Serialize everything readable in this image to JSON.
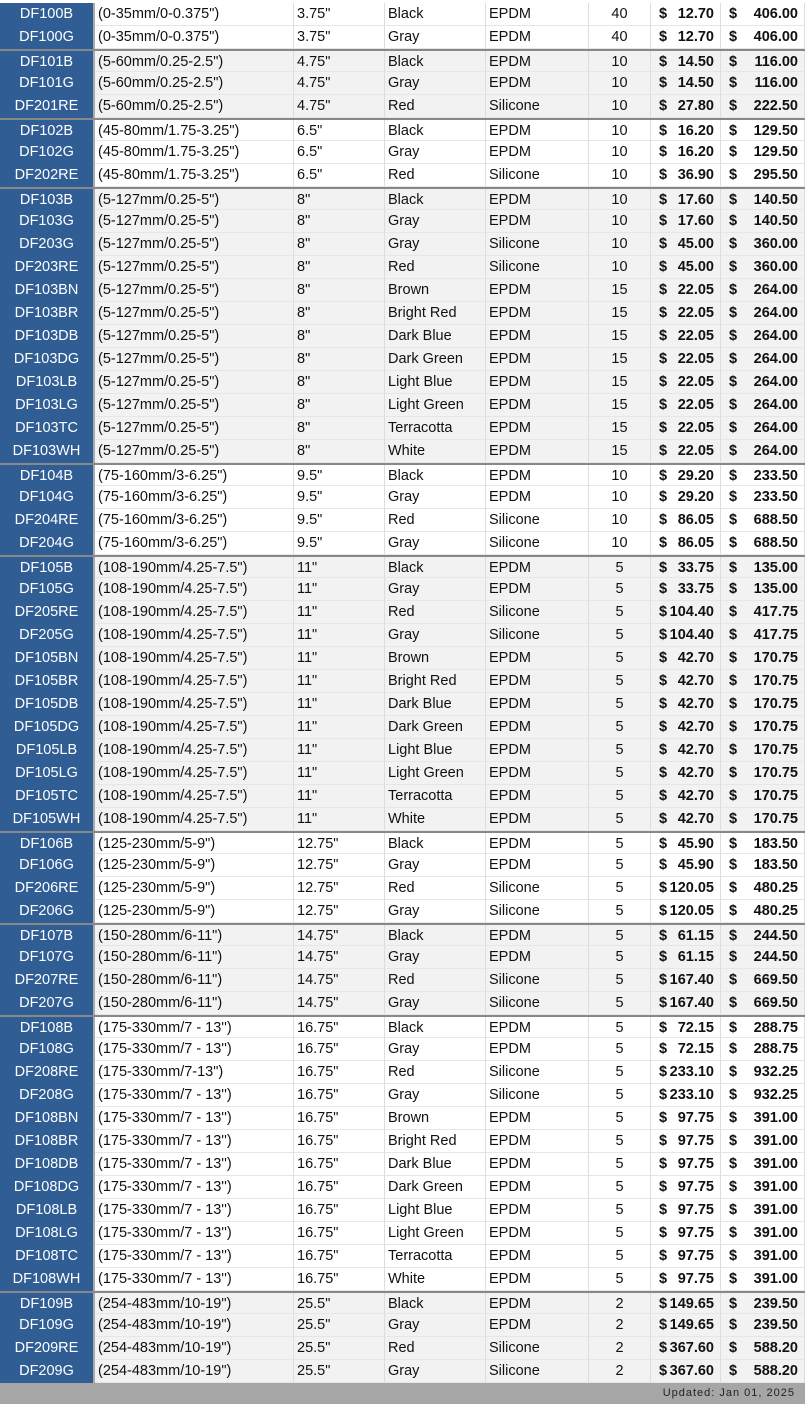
{
  "colors": {
    "id_background": "#2f5d94",
    "alt_row": "#f2f2f2",
    "footer": "#a6a6a6"
  },
  "groups": [
    {
      "rows": [
        [
          "DF100B",
          "(0-35mm/0-0.375\")",
          "3.75\"",
          "Black",
          "EPDM",
          "40",
          "12.70",
          "406.00"
        ],
        [
          "DF100G",
          "(0-35mm/0-0.375\")",
          "3.75\"",
          "Gray",
          "EPDM",
          "40",
          "12.70",
          "406.00"
        ]
      ]
    },
    {
      "rows": [
        [
          "DF101B",
          "(5-60mm/0.25-2.5\")",
          "4.75\"",
          "Black",
          "EPDM",
          "10",
          "14.50",
          "116.00"
        ],
        [
          "DF101G",
          "(5-60mm/0.25-2.5\")",
          "4.75\"",
          "Gray",
          "EPDM",
          "10",
          "14.50",
          "116.00"
        ],
        [
          "DF201RE",
          "(5-60mm/0.25-2.5\")",
          "4.75\"",
          "Red",
          "Silicone",
          "10",
          "27.80",
          "222.50"
        ]
      ]
    },
    {
      "rows": [
        [
          "DF102B",
          "(45-80mm/1.75-3.25\")",
          "6.5\"",
          "Black",
          "EPDM",
          "10",
          "16.20",
          "129.50"
        ],
        [
          "DF102G",
          "(45-80mm/1.75-3.25\")",
          "6.5\"",
          "Gray",
          "EPDM",
          "10",
          "16.20",
          "129.50"
        ],
        [
          "DF202RE",
          "(45-80mm/1.75-3.25\")",
          "6.5\"",
          "Red",
          "Silicone",
          "10",
          "36.90",
          "295.50"
        ]
      ]
    },
    {
      "rows": [
        [
          "DF103B",
          "(5-127mm/0.25-5\")",
          "8\"",
          "Black",
          "EPDM",
          "10",
          "17.60",
          "140.50"
        ],
        [
          "DF103G",
          "(5-127mm/0.25-5\")",
          "8\"",
          "Gray",
          "EPDM",
          "10",
          "17.60",
          "140.50"
        ],
        [
          "DF203G",
          "(5-127mm/0.25-5\")",
          "8\"",
          "Gray",
          "Silicone",
          "10",
          "45.00",
          "360.00"
        ],
        [
          "DF203RE",
          "(5-127mm/0.25-5\")",
          "8\"",
          "Red",
          "Silicone",
          "10",
          "45.00",
          "360.00"
        ],
        [
          "DF103BN",
          "(5-127mm/0.25-5\")",
          "8\"",
          "Brown",
          "EPDM",
          "15",
          "22.05",
          "264.00"
        ],
        [
          "DF103BR",
          "(5-127mm/0.25-5\")",
          "8\"",
          "Bright Red",
          "EPDM",
          "15",
          "22.05",
          "264.00"
        ],
        [
          "DF103DB",
          "(5-127mm/0.25-5\")",
          "8\"",
          "Dark Blue",
          "EPDM",
          "15",
          "22.05",
          "264.00"
        ],
        [
          "DF103DG",
          "(5-127mm/0.25-5\")",
          "8\"",
          "Dark Green",
          "EPDM",
          "15",
          "22.05",
          "264.00"
        ],
        [
          "DF103LB",
          "(5-127mm/0.25-5\")",
          "8\"",
          "Light Blue",
          "EPDM",
          "15",
          "22.05",
          "264.00"
        ],
        [
          "DF103LG",
          "(5-127mm/0.25-5\")",
          "8\"",
          "Light Green",
          "EPDM",
          "15",
          "22.05",
          "264.00"
        ],
        [
          "DF103TC",
          "(5-127mm/0.25-5\")",
          "8\"",
          "Terracotta",
          "EPDM",
          "15",
          "22.05",
          "264.00"
        ],
        [
          "DF103WH",
          "(5-127mm/0.25-5\")",
          "8\"",
          "White",
          "EPDM",
          "15",
          "22.05",
          "264.00"
        ]
      ]
    },
    {
      "rows": [
        [
          "DF104B",
          "(75-160mm/3-6.25\")",
          "9.5\"",
          "Black",
          "EPDM",
          "10",
          "29.20",
          "233.50"
        ],
        [
          "DF104G",
          "(75-160mm/3-6.25\")",
          "9.5\"",
          "Gray",
          "EPDM",
          "10",
          "29.20",
          "233.50"
        ],
        [
          "DF204RE",
          "(75-160mm/3-6.25\")",
          "9.5\"",
          "Red",
          "Silicone",
          "10",
          "86.05",
          "688.50"
        ],
        [
          "DF204G",
          "(75-160mm/3-6.25\")",
          "9.5\"",
          "Gray",
          "Silicone",
          "10",
          "86.05",
          "688.50"
        ]
      ]
    },
    {
      "rows": [
        [
          "DF105B",
          "(108-190mm/4.25-7.5\")",
          "11\"",
          "Black",
          "EPDM",
          "5",
          "33.75",
          "135.00"
        ],
        [
          "DF105G",
          "(108-190mm/4.25-7.5\")",
          "11\"",
          "Gray",
          "EPDM",
          "5",
          "33.75",
          "135.00"
        ],
        [
          "DF205RE",
          "(108-190mm/4.25-7.5\")",
          "11\"",
          "Red",
          "Silicone",
          "5",
          "104.40",
          "417.75"
        ],
        [
          "DF205G",
          "(108-190mm/4.25-7.5\")",
          "11\"",
          "Gray",
          "Silicone",
          "5",
          "104.40",
          "417.75"
        ],
        [
          "DF105BN",
          "(108-190mm/4.25-7.5\")",
          "11\"",
          "Brown",
          "EPDM",
          "5",
          "42.70",
          "170.75"
        ],
        [
          "DF105BR",
          "(108-190mm/4.25-7.5\")",
          "11\"",
          "Bright Red",
          "EPDM",
          "5",
          "42.70",
          "170.75"
        ],
        [
          "DF105DB",
          "(108-190mm/4.25-7.5\")",
          "11\"",
          "Dark Blue",
          "EPDM",
          "5",
          "42.70",
          "170.75"
        ],
        [
          "DF105DG",
          "(108-190mm/4.25-7.5\")",
          "11\"",
          "Dark Green",
          "EPDM",
          "5",
          "42.70",
          "170.75"
        ],
        [
          "DF105LB",
          "(108-190mm/4.25-7.5\")",
          "11\"",
          "Light Blue",
          "EPDM",
          "5",
          "42.70",
          "170.75"
        ],
        [
          "DF105LG",
          "(108-190mm/4.25-7.5\")",
          "11\"",
          "Light Green",
          "EPDM",
          "5",
          "42.70",
          "170.75"
        ],
        [
          "DF105TC",
          "(108-190mm/4.25-7.5\")",
          "11\"",
          "Terracotta",
          "EPDM",
          "5",
          "42.70",
          "170.75"
        ],
        [
          "DF105WH",
          "(108-190mm/4.25-7.5\")",
          "11\"",
          "White",
          "EPDM",
          "5",
          "42.70",
          "170.75"
        ]
      ]
    },
    {
      "rows": [
        [
          "DF106B",
          "(125-230mm/5-9\")",
          "12.75\"",
          "Black",
          "EPDM",
          "5",
          "45.90",
          "183.50"
        ],
        [
          "DF106G",
          "(125-230mm/5-9\")",
          "12.75\"",
          "Gray",
          "EPDM",
          "5",
          "45.90",
          "183.50"
        ],
        [
          "DF206RE",
          "(125-230mm/5-9\")",
          "12.75\"",
          "Red",
          "Silicone",
          "5",
          "120.05",
          "480.25"
        ],
        [
          "DF206G",
          "(125-230mm/5-9\")",
          "12.75\"",
          "Gray",
          "Silicone",
          "5",
          "120.05",
          "480.25"
        ]
      ]
    },
    {
      "rows": [
        [
          "DF107B",
          "(150-280mm/6-11\")",
          "14.75\"",
          "Black",
          "EPDM",
          "5",
          "61.15",
          "244.50"
        ],
        [
          "DF107G",
          "(150-280mm/6-11\")",
          "14.75\"",
          "Gray",
          "EPDM",
          "5",
          "61.15",
          "244.50"
        ],
        [
          "DF207RE",
          "(150-280mm/6-11\")",
          "14.75\"",
          "Red",
          "Silicone",
          "5",
          "167.40",
          "669.50"
        ],
        [
          "DF207G",
          "(150-280mm/6-11\")",
          "14.75\"",
          "Gray",
          "Silicone",
          "5",
          "167.40",
          "669.50"
        ]
      ]
    },
    {
      "rows": [
        [
          "DF108B",
          "(175-330mm/7 - 13'')",
          "16.75\"",
          "Black",
          "EPDM",
          "5",
          "72.15",
          "288.75"
        ],
        [
          "DF108G",
          "(175-330mm/7 - 13'')",
          "16.75\"",
          "Gray",
          "EPDM",
          "5",
          "72.15",
          "288.75"
        ],
        [
          "DF208RE",
          "(175-330mm/7-13\")",
          "16.75\"",
          "Red",
          "Silicone",
          "5",
          "233.10",
          "932.25"
        ],
        [
          "DF208G",
          "(175-330mm/7 - 13'')",
          "16.75\"",
          "Gray",
          "Silicone",
          "5",
          "233.10",
          "932.25"
        ],
        [
          "DF108BN",
          "(175-330mm/7 - 13'')",
          "16.75\"",
          "Brown",
          "EPDM",
          "5",
          "97.75",
          "391.00"
        ],
        [
          "DF108BR",
          "(175-330mm/7 - 13'')",
          "16.75\"",
          "Bright Red",
          "EPDM",
          "5",
          "97.75",
          "391.00"
        ],
        [
          "DF108DB",
          "(175-330mm/7 - 13'')",
          "16.75\"",
          "Dark Blue",
          "EPDM",
          "5",
          "97.75",
          "391.00"
        ],
        [
          "DF108DG",
          "(175-330mm/7 - 13'')",
          "16.75\"",
          "Dark Green",
          "EPDM",
          "5",
          "97.75",
          "391.00"
        ],
        [
          "DF108LB",
          "(175-330mm/7 - 13'')",
          "16.75\"",
          "Light Blue",
          "EPDM",
          "5",
          "97.75",
          "391.00"
        ],
        [
          "DF108LG",
          "(175-330mm/7 - 13'')",
          "16.75\"",
          "Light Green",
          "EPDM",
          "5",
          "97.75",
          "391.00"
        ],
        [
          "DF108TC",
          "(175-330mm/7 - 13'')",
          "16.75\"",
          "Terracotta",
          "EPDM",
          "5",
          "97.75",
          "391.00"
        ],
        [
          "DF108WH",
          "(175-330mm/7 - 13'')",
          "16.75\"",
          "White",
          "EPDM",
          "5",
          "97.75",
          "391.00"
        ]
      ]
    },
    {
      "rows": [
        [
          "DF109B",
          "(254-483mm/10-19\")",
          "25.5\"",
          "Black",
          "EPDM",
          "2",
          "149.65",
          "239.50"
        ],
        [
          "DF109G",
          "(254-483mm/10-19\")",
          "25.5\"",
          "Gray",
          "EPDM",
          "2",
          "149.65",
          "239.50"
        ],
        [
          "DF209RE",
          "(254-483mm/10-19\")",
          "25.5\"",
          "Red",
          "Silicone",
          "2",
          "367.60",
          "588.20"
        ],
        [
          "DF209G",
          "(254-483mm/10-19\")",
          "25.5\"",
          "Gray",
          "Silicone",
          "2",
          "367.60",
          "588.20"
        ]
      ]
    }
  ],
  "currency_symbol": "$",
  "footer": {
    "updated": "Updated: Jan 01, 2025"
  }
}
